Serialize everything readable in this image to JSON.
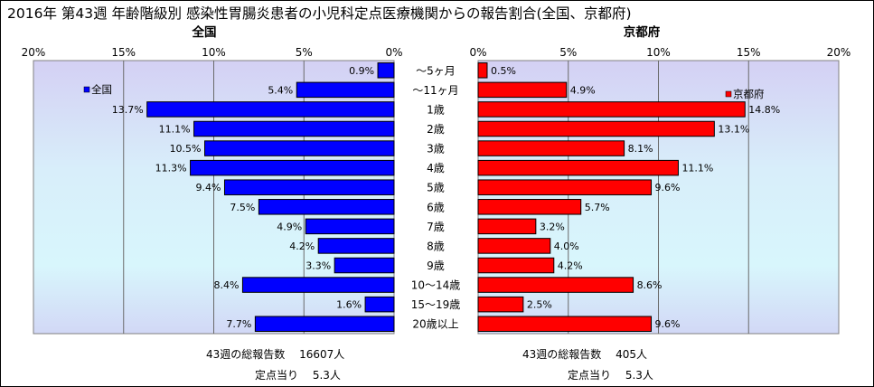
{
  "title": "2016年 第43週 年齢階級別 感染性胃腸炎患者の小児科定点医療機関からの報告割合(全国、京都府)",
  "chart_data": [
    {
      "type": "bar",
      "orientation": "horizontal",
      "title": "全国",
      "legend": "全国",
      "legend_position": "top-left",
      "direction": "right-to-left",
      "xlim": [
        0,
        20
      ],
      "ticks": [
        "0%",
        "5%",
        "10%",
        "15%",
        "20%"
      ],
      "color": "#0000ff",
      "categories": [
        "～5ヶ月",
        "～11ヶ月",
        "1歳",
        "2歳",
        "3歳",
        "4歳",
        "5歳",
        "6歳",
        "7歳",
        "8歳",
        "9歳",
        "10～14歳",
        "15～19歳",
        "20歳以上"
      ],
      "values": [
        0.9,
        5.4,
        13.7,
        11.1,
        10.5,
        11.3,
        9.4,
        7.5,
        4.9,
        4.2,
        3.3,
        8.4,
        1.6,
        7.7
      ],
      "labels": [
        "0.9%",
        "5.4%",
        "13.7%",
        "11.1%",
        "10.5%",
        "11.3%",
        "9.4%",
        "7.5%",
        "4.9%",
        "4.2%",
        "3.3%",
        "8.4%",
        "1.6%",
        "7.7%"
      ]
    },
    {
      "type": "bar",
      "orientation": "horizontal",
      "title": "京都府",
      "legend": "京都府",
      "legend_position": "top-right",
      "direction": "left-to-right",
      "xlim": [
        0,
        20
      ],
      "ticks": [
        "0%",
        "5%",
        "10%",
        "15%",
        "20%"
      ],
      "color": "#ff0000",
      "categories": [
        "～5ヶ月",
        "～11ヶ月",
        "1歳",
        "2歳",
        "3歳",
        "4歳",
        "5歳",
        "6歳",
        "7歳",
        "8歳",
        "9歳",
        "10～14歳",
        "15～19歳",
        "20歳以上"
      ],
      "values": [
        0.5,
        4.9,
        14.8,
        13.1,
        8.1,
        11.1,
        9.6,
        5.7,
        3.2,
        4.0,
        4.2,
        8.6,
        2.5,
        9.6
      ],
      "labels": [
        "0.5%",
        "4.9%",
        "14.8%",
        "13.1%",
        "8.1%",
        "11.1%",
        "9.6%",
        "5.7%",
        "3.2%",
        "4.0%",
        "4.2%",
        "8.6%",
        "2.5%",
        "9.6%"
      ]
    }
  ],
  "footer": {
    "left_total": "43週の総報告数　 16607人",
    "left_per": "定点当り　 5.3人",
    "right_total": "43週の総報告数　 405人",
    "right_per": "定点当り　 5.3人"
  }
}
